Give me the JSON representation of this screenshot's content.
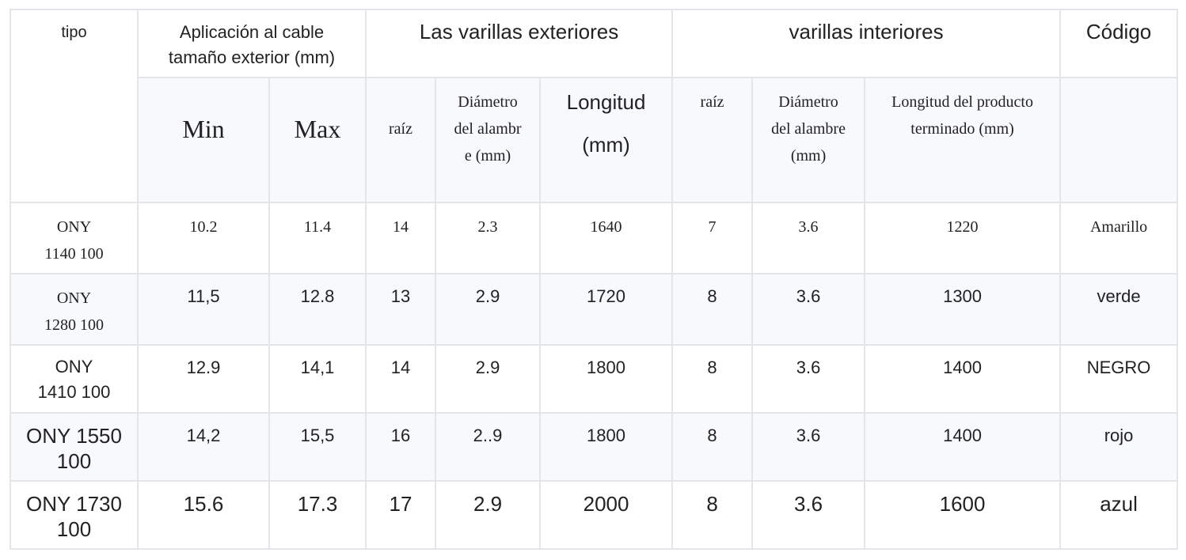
{
  "headers": {
    "tipo": "tipo",
    "aplicacion": "Aplicación al cable tamaño exterior (mm)",
    "exteriores": "Las varillas exteriores",
    "interiores": "varillas interiores",
    "codigo": "Código",
    "min": "Min",
    "max": "Max",
    "raiz_ext": "raíz",
    "diametro_ext": "Diámetro del alambre (mm)",
    "longitud_ext": "Longitud (mm)",
    "raiz_int": "raíz",
    "diametro_int": "Diámetro del alambre (mm)",
    "longitud_int": "Longitud del producto terminado (mm)"
  },
  "rows": [
    {
      "tipo": "ONY 1140 100",
      "min": "10.2",
      "max": "11.4",
      "raiz_ext": "14",
      "diametro_ext": "2.3",
      "longitud_ext": "1640",
      "raiz_int": "7",
      "diametro_int": "3.6",
      "longitud_int": "1220",
      "codigo": "Amarillo"
    },
    {
      "tipo": "ONY 1280 100",
      "min": "11,5",
      "max": "12.8",
      "raiz_ext": "13",
      "diametro_ext": "2.9",
      "longitud_ext": "1720",
      "raiz_int": "8",
      "diametro_int": "3.6",
      "longitud_int": "1300",
      "codigo": "verde"
    },
    {
      "tipo": "ONY 1410 100",
      "min": "12.9",
      "max": "14,1",
      "raiz_ext": "14",
      "diametro_ext": "2.9",
      "longitud_ext": "1800",
      "raiz_int": "8",
      "diametro_int": "3.6",
      "longitud_int": "1400",
      "codigo": "NEGRO"
    },
    {
      "tipo": "ONY 1550 100",
      "min": "14,2",
      "max": "15,5",
      "raiz_ext": "16",
      "diametro_ext": "2..9",
      "longitud_ext": "1800",
      "raiz_int": "8",
      "diametro_int": "3.6",
      "longitud_int": "1400",
      "codigo": "rojo"
    },
    {
      "tipo": "ONY 1730 100",
      "min": "15.6",
      "max": "17.3",
      "raiz_ext": "17",
      "diametro_ext": "2.9",
      "longitud_ext": "2000",
      "raiz_int": "8",
      "diametro_int": "3.6",
      "longitud_int": "1600",
      "codigo": "azul"
    }
  ]
}
